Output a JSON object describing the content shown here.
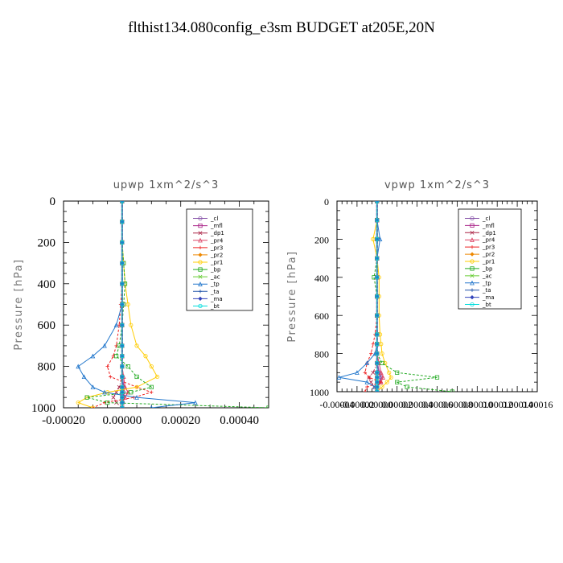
{
  "title": "flthist134.080config_e3sm  BUDGET at205E,20N",
  "chart_data": [
    {
      "type": "line",
      "title": "upwp   1xm^2/s^3",
      "ylabel": "Pressure [hPa]",
      "xlabel": "",
      "xlim": [
        -0.0002,
        0.0005
      ],
      "ylim": [
        1000,
        0
      ],
      "xticks": [
        -0.0002,
        0.0,
        0.0002,
        0.0004
      ],
      "xtick_labels": [
        "-0.00020",
        "0.00000",
        "0.00020",
        "0.00040"
      ],
      "yticks": [
        0,
        200,
        400,
        600,
        800,
        1000
      ],
      "ytick_labels": [
        "0",
        "200",
        "400",
        "600",
        "800",
        "1000"
      ],
      "legend_position": "top-right",
      "pressure": [
        0,
        100,
        200,
        300,
        400,
        500,
        600,
        700,
        750,
        800,
        850,
        900,
        925,
        950,
        975,
        1000
      ],
      "series": [
        {
          "name": "_cl",
          "color": "#8855aa",
          "values": [
            0,
            0,
            0,
            0,
            0,
            0,
            0,
            0,
            0,
            0,
            0,
            5e-06,
            5e-06,
            5e-06,
            2e-06,
            0
          ]
        },
        {
          "name": "_mfl",
          "color": "#aa2288",
          "values": [
            0,
            0,
            0,
            0,
            0,
            0,
            0,
            0,
            0,
            0,
            0,
            0,
            0,
            0,
            0,
            0
          ]
        },
        {
          "name": "_dp1",
          "color": "#aa2244",
          "values": [
            0,
            0,
            0,
            0,
            0,
            0,
            0,
            0,
            0,
            0,
            0,
            -1e-05,
            -2e-05,
            -3e-05,
            -2e-05,
            0
          ]
        },
        {
          "name": "_pr4",
          "color": "#dd4466",
          "values": [
            0,
            0,
            0,
            0,
            0,
            0,
            0,
            0,
            0,
            0,
            5e-06,
            1e-05,
            2e-05,
            1e-05,
            0,
            0
          ]
        },
        {
          "name": "_pr3",
          "color": "#ee2222",
          "values": [
            0,
            0,
            0,
            0,
            0,
            -5e-06,
            -1e-05,
            -2e-05,
            -3e-05,
            -5e-05,
            -4e-05,
            5e-05,
            0.0001,
            4e-05,
            -6e-05,
            -0.0001
          ]
        },
        {
          "name": "_pr2",
          "color": "#ee8800",
          "values": [
            0,
            0,
            0,
            0,
            0,
            0,
            0,
            0,
            0,
            0,
            0,
            0,
            0,
            0,
            0,
            0
          ]
        },
        {
          "name": "_pr1",
          "color": "#ffcc00",
          "values": [
            0,
            0,
            0,
            5e-06,
            1e-05,
            2e-05,
            3e-05,
            5e-05,
            8e-05,
            0.0001,
            0.00012,
            5e-05,
            -5e-05,
            -0.00012,
            -0.00015,
            -0.0001
          ]
        },
        {
          "name": "_bp",
          "color": "#22aa22",
          "values": [
            0,
            0,
            0,
            5e-06,
            1e-05,
            5e-06,
            0,
            -1e-05,
            -2e-05,
            2e-05,
            5e-05,
            0.0001,
            3e-05,
            -0.00012,
            -5e-05,
            0.0005
          ]
        },
        {
          "name": "_ac",
          "color": "#66cc33",
          "values": [
            0,
            0,
            0,
            0,
            0,
            0,
            0,
            0,
            0,
            0,
            0,
            0,
            0,
            0,
            0,
            0
          ]
        },
        {
          "name": "_tp",
          "color": "#2277cc",
          "values": [
            0,
            0,
            0,
            0,
            0,
            0,
            -2e-05,
            -6e-05,
            -0.0001,
            -0.00015,
            -0.00013,
            -0.0001,
            -6e-05,
            5e-05,
            0.00025,
            0.0001
          ]
        },
        {
          "name": "_ta",
          "color": "#2255aa",
          "values": [
            0,
            0,
            0,
            0,
            0,
            0,
            0,
            0,
            0,
            0,
            0,
            0,
            0,
            0,
            0,
            0
          ]
        },
        {
          "name": "_ma",
          "color": "#3344bb",
          "values": [
            0,
            0,
            0,
            0,
            0,
            0,
            0,
            0,
            0,
            0,
            0,
            0,
            0,
            0,
            0,
            0
          ]
        },
        {
          "name": "_bt",
          "color": "#00dddd",
          "values": [
            0,
            0,
            0,
            0,
            0,
            0,
            0,
            0,
            0,
            0,
            0,
            0,
            0,
            0,
            0,
            0
          ]
        }
      ]
    },
    {
      "type": "line",
      "title": "vpwp   1xm^2/s^3",
      "ylabel": "Pressure [hPa]",
      "xlabel": "",
      "xlim": [
        -4e-05,
        0.00016
      ],
      "ylim": [
        1000,
        0
      ],
      "xticks": [
        -4e-05,
        -2e-05,
        0.0,
        2e-05,
        4e-05,
        6e-05,
        8e-05,
        0.0001,
        0.00012,
        0.00014,
        0.00016
      ],
      "xtick_labels": [
        "-0.00004",
        "-0.00002",
        "0.00000",
        "0.00002",
        "0.00004",
        "0.00006",
        "0.00008",
        "0.00010",
        "0.00012",
        "0.00014",
        "0.00016"
      ],
      "yticks": [
        0,
        200,
        400,
        600,
        800,
        1000
      ],
      "ytick_labels": [
        "0",
        "200",
        "400",
        "600",
        "800",
        "1000"
      ],
      "legend_position": "top-right",
      "pressure": [
        0,
        100,
        200,
        300,
        400,
        500,
        600,
        700,
        750,
        800,
        850,
        900,
        925,
        950,
        975,
        1000
      ],
      "series": [
        {
          "name": "_cl",
          "color": "#8855aa",
          "values": [
            0,
            0,
            0,
            0,
            0,
            0,
            0,
            0,
            0,
            0,
            0,
            2e-06,
            4e-06,
            3e-06,
            0,
            0
          ]
        },
        {
          "name": "_mfl",
          "color": "#aa2288",
          "values": [
            0,
            0,
            0,
            0,
            0,
            0,
            0,
            0,
            0,
            0,
            0,
            0,
            0,
            0,
            0,
            0
          ]
        },
        {
          "name": "_dp1",
          "color": "#aa2244",
          "values": [
            0,
            0,
            0,
            0,
            0,
            0,
            0,
            0,
            0,
            0,
            0,
            -4e-06,
            -8e-06,
            -6e-06,
            -3e-06,
            0
          ]
        },
        {
          "name": "_pr4",
          "color": "#dd4466",
          "values": [
            0,
            0,
            0,
            0,
            0,
            0,
            0,
            0,
            0,
            0,
            2e-06,
            4e-06,
            6e-06,
            4e-06,
            0,
            0
          ]
        },
        {
          "name": "_pr3",
          "color": "#ee2222",
          "values": [
            0,
            0,
            0,
            0,
            0,
            0,
            0,
            -2e-06,
            -4e-06,
            -6e-06,
            -1e-05,
            -1.2e-05,
            -8e-06,
            4e-06,
            -1e-05,
            -1.2e-05
          ]
        },
        {
          "name": "_pr2",
          "color": "#ee8800",
          "values": [
            0,
            0,
            0,
            0,
            0,
            0,
            0,
            0,
            0,
            0,
            0,
            0,
            0,
            0,
            0,
            0
          ]
        },
        {
          "name": "_pr1",
          "color": "#ffcc00",
          "values": [
            0,
            0,
            -4e-06,
            0,
            2e-06,
            2e-06,
            2e-06,
            3e-06,
            4e-06,
            5e-06,
            8e-06,
            1.2e-05,
            1.4e-05,
            1e-05,
            5e-06,
            0
          ]
        },
        {
          "name": "_bp",
          "color": "#22aa22",
          "values": [
            0,
            0,
            0,
            0,
            -3e-06,
            0,
            0,
            0,
            0,
            0,
            5e-06,
            2e-05,
            6e-05,
            2e-05,
            3e-05,
            7.5e-05
          ]
        },
        {
          "name": "_ac",
          "color": "#66cc33",
          "values": [
            0,
            0,
            0,
            0,
            0,
            0,
            0,
            0,
            0,
            0,
            0,
            0,
            0,
            0,
            0,
            0
          ]
        },
        {
          "name": "_tp",
          "color": "#2277cc",
          "values": [
            0,
            0,
            3e-06,
            0,
            0,
            0,
            0,
            0,
            0,
            -2e-06,
            -1e-05,
            -2e-05,
            -3.8e-05,
            -1e-05,
            -2e-06,
            0
          ]
        },
        {
          "name": "_ta",
          "color": "#2255aa",
          "values": [
            0,
            0,
            0,
            0,
            0,
            0,
            0,
            0,
            0,
            0,
            0,
            0,
            0,
            0,
            0,
            0
          ]
        },
        {
          "name": "_ma",
          "color": "#3344bb",
          "values": [
            0,
            0,
            0,
            0,
            0,
            0,
            0,
            0,
            0,
            0,
            0,
            0,
            0,
            0,
            0,
            0
          ]
        },
        {
          "name": "_bt",
          "color": "#00dddd",
          "values": [
            0,
            0,
            0,
            0,
            0,
            0,
            0,
            0,
            0,
            0,
            0,
            0,
            0,
            0,
            0,
            0
          ]
        }
      ]
    }
  ]
}
